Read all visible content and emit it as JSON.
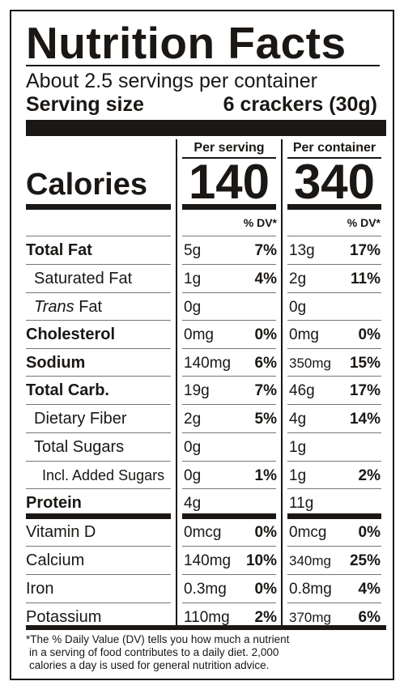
{
  "title": "Nutrition Facts",
  "servings_per_container": "About 2.5 servings per container",
  "serving_size_label": "Serving size",
  "serving_size_value": "6 crackers (30g)",
  "col_per_serving": "Per serving",
  "col_per_container": "Per container",
  "calories_label": "Calories",
  "calories_per_serving": "140",
  "calories_per_container": "340",
  "dv_header": "% DV*",
  "rows": [
    {
      "name": "Total Fat",
      "bold": true,
      "indent": 0,
      "s_amt": "5g",
      "s_pct": "7%",
      "c_amt": "13g",
      "c_pct": "17%"
    },
    {
      "name": "Saturated Fat",
      "bold": false,
      "indent": 1,
      "s_amt": "1g",
      "s_pct": "4%",
      "c_amt": "2g",
      "c_pct": "11%"
    },
    {
      "name_italic": "Trans",
      "name": " Fat",
      "bold": false,
      "indent": 1,
      "s_amt": "0g",
      "s_pct": "",
      "c_amt": "0g",
      "c_pct": ""
    },
    {
      "name": "Cholesterol",
      "bold": true,
      "indent": 0,
      "s_amt": "0mg",
      "s_pct": "0%",
      "c_amt": "0mg",
      "c_pct": "0%"
    },
    {
      "name": "Sodium",
      "bold": true,
      "indent": 0,
      "s_amt": "140mg",
      "s_pct": "6%",
      "c_amt": "350mg",
      "c_pct": "15%"
    },
    {
      "name": "Total Carb.",
      "bold": true,
      "indent": 0,
      "s_amt": "19g",
      "s_pct": "7%",
      "c_amt": "46g",
      "c_pct": "17%"
    },
    {
      "name": "Dietary Fiber",
      "bold": false,
      "indent": 1,
      "s_amt": "2g",
      "s_pct": "5%",
      "c_amt": "4g",
      "c_pct": "14%"
    },
    {
      "name": "Total Sugars",
      "bold": false,
      "indent": 1,
      "s_amt": "0g",
      "s_pct": "",
      "c_amt": "1g",
      "c_pct": ""
    },
    {
      "name": "Incl. Added Sugars",
      "bold": false,
      "indent": 2,
      "s_amt": "0g",
      "s_pct": "1%",
      "c_amt": "1g",
      "c_pct": "2%"
    },
    {
      "name": "Protein",
      "bold": true,
      "indent": 0,
      "s_amt": "4g",
      "s_pct": "",
      "c_amt": "11g",
      "c_pct": ""
    },
    {
      "name": "Vitamin D",
      "bold": false,
      "indent": 0,
      "s_amt": "0mcg",
      "s_pct": "0%",
      "c_amt": "0mcg",
      "c_pct": "0%"
    },
    {
      "name": "Calcium",
      "bold": false,
      "indent": 0,
      "s_amt": "140mg",
      "s_pct": "10%",
      "c_amt": "340mg",
      "c_pct": "25%"
    },
    {
      "name": "Iron",
      "bold": false,
      "indent": 0,
      "s_amt": "0.3mg",
      "s_pct": "0%",
      "c_amt": "0.8mg",
      "c_pct": "4%"
    },
    {
      "name": "Potassium",
      "bold": false,
      "indent": 0,
      "s_amt": "110mg",
      "s_pct": "2%",
      "c_amt": "370mg",
      "c_pct": "6%"
    }
  ],
  "footnote": [
    "*The % Daily Value (DV) tells you how much a nutrient",
    "in a serving of food contributes to a daily diet. 2,000",
    "calories a day is used for general nutrition advice."
  ],
  "colors": {
    "ink": "#1a1714",
    "background": "#ffffff"
  }
}
